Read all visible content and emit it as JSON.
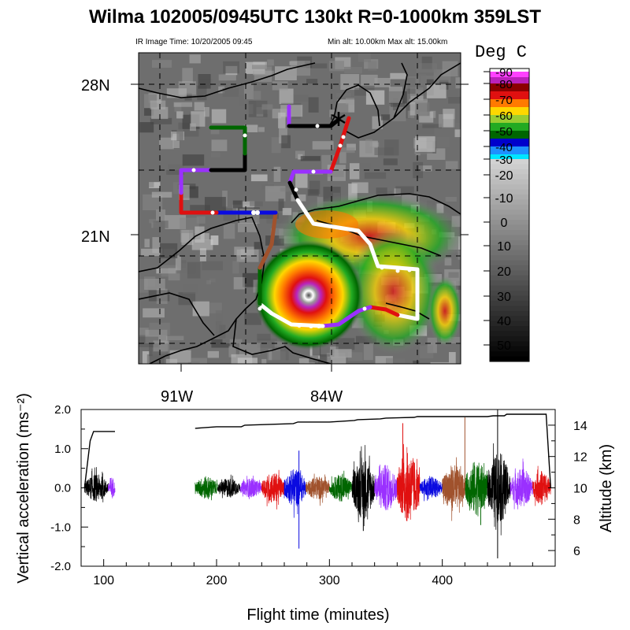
{
  "header": {
    "title": "Wilma 102005/0945UTC 130kt  R=0-1000km 359LST",
    "ir_time": "IR Image Time: 10/20/2005 09:45",
    "alt_range": "Min alt: 10.00km  Max alt: 15.00km"
  },
  "colorbar": {
    "label": "Deg C",
    "tick_labels": [
      "-90",
      "-80",
      "-70",
      "-60",
      "-50",
      "-40",
      "-30",
      "-20",
      "-10",
      "0",
      "10",
      "20",
      "30",
      "40",
      "50"
    ],
    "colors": {
      "minus90": "#ffffff",
      "minus85": "#ff40ff",
      "minus80": "#bb22bb",
      "minus75": "#8b0000",
      "minus70": "#e01010",
      "minus65": "#ff7a00",
      "minus60": "#ffd700",
      "minus55": "#9acd32",
      "minus50": "#22aa22",
      "minus45": "#006600",
      "minus40": "#0000cc",
      "minus35": "#1e90ff",
      "minus30": "#00e5ff"
    }
  },
  "map": {
    "lat_labels": [
      "28N",
      "21N"
    ],
    "lon_labels": [
      "91W",
      "84W"
    ],
    "storm_colors": {
      "eye": "#4a4a4a",
      "eyewall": "#ffffff",
      "inner": "#ffd700",
      "outer": "#22aa22",
      "band": "#006600"
    },
    "track_colors": [
      "#9a30ff",
      "#000000",
      "#0a0ae0",
      "#e01010",
      "#006600",
      "#a0522d"
    ]
  },
  "chart_data": {
    "type": "line",
    "title": "",
    "xlabel": "Flight time (minutes)",
    "ylabel": "Vertical acceleration (ms⁻²)",
    "y2label": "Altitude (km)",
    "xlim": [
      80,
      500
    ],
    "ylim": [
      -2.0,
      2.0
    ],
    "y2lim": [
      5,
      15
    ],
    "x_ticks": [
      "100",
      "200",
      "300",
      "400"
    ],
    "y_ticks": [
      "2.0",
      "1.0",
      "0.0",
      "-1.0",
      "-2.0"
    ],
    "y2_ticks": [
      "6",
      "8",
      "10",
      "12",
      "14"
    ],
    "grid": false,
    "altitude_series": {
      "x": [
        83,
        88,
        91,
        110,
        null,
        181,
        200,
        222,
        225,
        268,
        272,
        300,
        322,
        325,
        345,
        350,
        375,
        378,
        440,
        445,
        455,
        457,
        492,
        496
      ],
      "y": [
        10.0,
        13.0,
        13.6,
        13.6,
        null,
        13.8,
        13.9,
        13.9,
        14.0,
        14.1,
        14.2,
        14.2,
        14.3,
        14.35,
        14.4,
        14.45,
        14.5,
        14.55,
        14.55,
        14.6,
        14.6,
        14.7,
        14.7,
        10.0
      ]
    },
    "acceleration_segments": [
      {
        "x0": 83,
        "x1": 104,
        "color": "#000000",
        "amp": 0.35
      },
      {
        "x0": 104,
        "x1": 110,
        "color": "#9a30ff",
        "amp": 0.3
      },
      {
        "x0": 181,
        "x1": 201,
        "color": "#006600",
        "amp": 0.3
      },
      {
        "x0": 201,
        "x1": 221,
        "color": "#000000",
        "amp": 0.25
      },
      {
        "x0": 221,
        "x1": 240,
        "color": "#9a30ff",
        "amp": 0.25
      },
      {
        "x0": 240,
        "x1": 260,
        "color": "#e01010",
        "amp": 0.4
      },
      {
        "x0": 260,
        "x1": 279,
        "color": "#0a0ae0",
        "amp": 0.5
      },
      {
        "x0": 279,
        "x1": 300,
        "color": "#a0522d",
        "amp": 0.3
      },
      {
        "x0": 300,
        "x1": 320,
        "color": "#006600",
        "amp": 0.35
      },
      {
        "x0": 320,
        "x1": 340,
        "color": "#000000",
        "amp": 0.8
      },
      {
        "x0": 340,
        "x1": 360,
        "color": "#9a30ff",
        "amp": 0.6
      },
      {
        "x0": 360,
        "x1": 380,
        "color": "#e01010",
        "amp": 0.9
      },
      {
        "x0": 380,
        "x1": 400,
        "color": "#0a0ae0",
        "amp": 0.3
      },
      {
        "x0": 400,
        "x1": 420,
        "color": "#a0522d",
        "amp": 0.6
      },
      {
        "x0": 420,
        "x1": 440,
        "color": "#006600",
        "amp": 0.7
      },
      {
        "x0": 440,
        "x1": 460,
        "color": "#000000",
        "amp": 0.9
      },
      {
        "x0": 460,
        "x1": 480,
        "color": "#9a30ff",
        "amp": 0.5
      },
      {
        "x0": 480,
        "x1": 496,
        "color": "#e01010",
        "amp": 0.45
      }
    ],
    "spikes": [
      {
        "x": 273,
        "y": -1.55,
        "color": "#0a0ae0"
      },
      {
        "x": 273,
        "y": 0.95,
        "color": "#0a0ae0"
      },
      {
        "x": 365,
        "y": 1.65,
        "color": "#e01010"
      },
      {
        "x": 420,
        "y": 1.8,
        "color": "#a0522d"
      },
      {
        "x": 449,
        "y": 2.0,
        "color": "#000000"
      },
      {
        "x": 449,
        "y": -1.8,
        "color": "#000000"
      },
      {
        "x": 434,
        "y": -0.95,
        "color": "#006600"
      },
      {
        "x": 330,
        "y": -1.1,
        "color": "#000000"
      }
    ]
  }
}
